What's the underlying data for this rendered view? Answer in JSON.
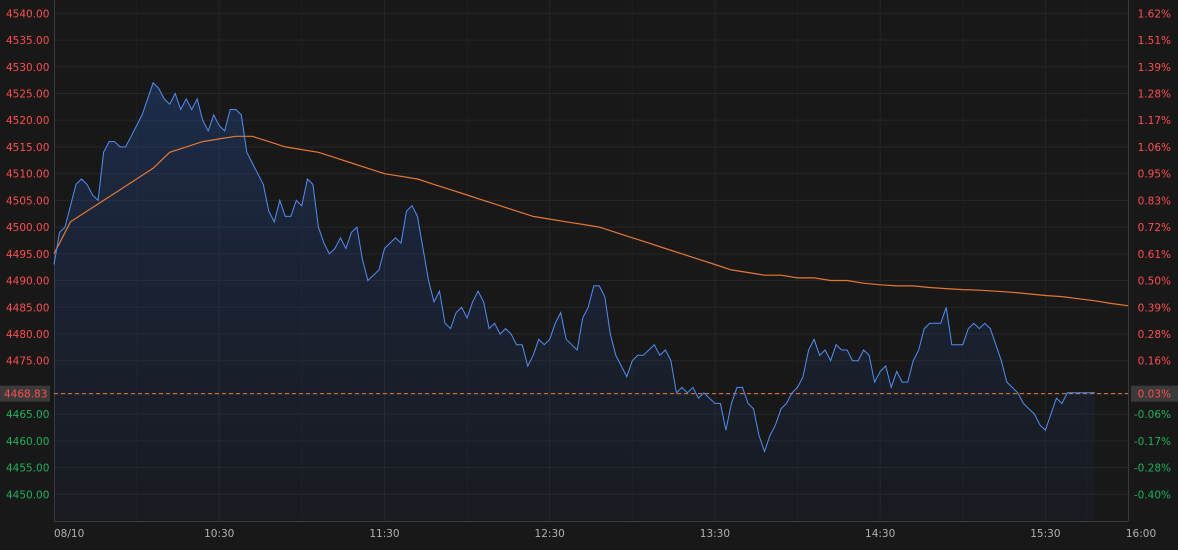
{
  "chart_data": {
    "type": "line",
    "title": "",
    "xlabel": "",
    "ylabel": "",
    "grid": true,
    "ylim": [
      4445.0,
      4542.5
    ],
    "reference_price": 4468.83,
    "reference_label": "4468.83",
    "reference_pct_label": "0.03%",
    "y_ticks": [
      {
        "value": 4540,
        "label": "4540.00"
      },
      {
        "value": 4535,
        "label": "4535.00"
      },
      {
        "value": 4530,
        "label": "4530.00"
      },
      {
        "value": 4525,
        "label": "4525.00"
      },
      {
        "value": 4520,
        "label": "4520.00"
      },
      {
        "value": 4515,
        "label": "4515.00"
      },
      {
        "value": 4510,
        "label": "4510.00"
      },
      {
        "value": 4505,
        "label": "4505.00"
      },
      {
        "value": 4500,
        "label": "4500.00"
      },
      {
        "value": 4495,
        "label": "4495.00"
      },
      {
        "value": 4490,
        "label": "4490.00"
      },
      {
        "value": 4485,
        "label": "4485.00"
      },
      {
        "value": 4480,
        "label": "4480.00"
      },
      {
        "value": 4475,
        "label": "4475.00"
      },
      {
        "value": 4465,
        "label": "4465.00"
      },
      {
        "value": 4460,
        "label": "4460.00"
      },
      {
        "value": 4455,
        "label": "4455.00"
      },
      {
        "value": 4450,
        "label": "4450.00"
      }
    ],
    "pct_ticks": [
      {
        "value": 4540,
        "label": "1.62%"
      },
      {
        "value": 4535,
        "label": "1.51%"
      },
      {
        "value": 4530,
        "label": "1.39%"
      },
      {
        "value": 4525,
        "label": "1.28%"
      },
      {
        "value": 4520,
        "label": "1.17%"
      },
      {
        "value": 4515,
        "label": "1.06%"
      },
      {
        "value": 4510,
        "label": "0.95%"
      },
      {
        "value": 4505,
        "label": "0.83%"
      },
      {
        "value": 4500,
        "label": "0.72%"
      },
      {
        "value": 4495,
        "label": "0.61%"
      },
      {
        "value": 4490,
        "label": "0.50%"
      },
      {
        "value": 4485,
        "label": "0.39%"
      },
      {
        "value": 4480,
        "label": "0.28%"
      },
      {
        "value": 4475,
        "label": "0.16%"
      },
      {
        "value": 4465,
        "label": "-0.06%"
      },
      {
        "value": 4460,
        "label": "-0.17%"
      },
      {
        "value": 4455,
        "label": "-0.28%"
      },
      {
        "value": 4450,
        "label": "-0.40%"
      }
    ],
    "x_range": [
      "09:30",
      "16:00"
    ],
    "x_ticks": [
      {
        "t": "09:30",
        "label": "08/10"
      },
      {
        "t": "10:30",
        "label": "10:30"
      },
      {
        "t": "11:30",
        "label": "11:30"
      },
      {
        "t": "12:30",
        "label": "12:30"
      },
      {
        "t": "13:30",
        "label": "13:30"
      },
      {
        "t": "14:30",
        "label": "14:30"
      },
      {
        "t": "15:30",
        "label": "15:30"
      },
      {
        "t": "16:00",
        "label": "16:00"
      }
    ],
    "series": [
      {
        "role": "price",
        "color": "#4f8ef7",
        "points": [
          [
            "09:30",
            4493
          ],
          [
            "09:32",
            4499
          ],
          [
            "09:34",
            4500
          ],
          [
            "09:36",
            4504
          ],
          [
            "09:38",
            4508
          ],
          [
            "09:40",
            4509
          ],
          [
            "09:42",
            4508
          ],
          [
            "09:44",
            4506
          ],
          [
            "09:46",
            4505
          ],
          [
            "09:48",
            4514
          ],
          [
            "09:50",
            4516
          ],
          [
            "09:52",
            4516
          ],
          [
            "09:54",
            4515
          ],
          [
            "09:56",
            4515
          ],
          [
            "09:58",
            4517
          ],
          [
            "10:00",
            4519
          ],
          [
            "10:02",
            4521
          ],
          [
            "10:04",
            4524
          ],
          [
            "10:06",
            4527
          ],
          [
            "10:08",
            4526
          ],
          [
            "10:10",
            4524
          ],
          [
            "10:12",
            4523
          ],
          [
            "10:14",
            4525
          ],
          [
            "10:16",
            4522
          ],
          [
            "10:18",
            4524
          ],
          [
            "10:20",
            4522
          ],
          [
            "10:22",
            4524
          ],
          [
            "10:24",
            4520
          ],
          [
            "10:26",
            4518
          ],
          [
            "10:28",
            4521
          ],
          [
            "10:30",
            4519
          ],
          [
            "10:32",
            4518
          ],
          [
            "10:34",
            4522
          ],
          [
            "10:36",
            4522
          ],
          [
            "10:38",
            4521
          ],
          [
            "10:40",
            4514
          ],
          [
            "10:42",
            4512
          ],
          [
            "10:44",
            4510
          ],
          [
            "10:46",
            4508
          ],
          [
            "10:48",
            4503
          ],
          [
            "10:50",
            4501
          ],
          [
            "10:52",
            4505
          ],
          [
            "10:54",
            4502
          ],
          [
            "10:56",
            4502
          ],
          [
            "10:58",
            4505
          ],
          [
            "11:00",
            4504
          ],
          [
            "11:02",
            4509
          ],
          [
            "11:04",
            4508
          ],
          [
            "11:06",
            4500
          ],
          [
            "11:08",
            4497
          ],
          [
            "11:10",
            4495
          ],
          [
            "11:12",
            4496
          ],
          [
            "11:14",
            4498
          ],
          [
            "11:16",
            4496
          ],
          [
            "11:18",
            4499
          ],
          [
            "11:20",
            4500
          ],
          [
            "11:22",
            4494
          ],
          [
            "11:24",
            4490
          ],
          [
            "11:26",
            4491
          ],
          [
            "11:28",
            4492
          ],
          [
            "11:30",
            4496
          ],
          [
            "11:32",
            4497
          ],
          [
            "11:34",
            4498
          ],
          [
            "11:36",
            4497
          ],
          [
            "11:38",
            4503
          ],
          [
            "11:40",
            4504
          ],
          [
            "11:42",
            4502
          ],
          [
            "11:44",
            4496
          ],
          [
            "11:46",
            4490
          ],
          [
            "11:48",
            4486
          ],
          [
            "11:50",
            4488
          ],
          [
            "11:52",
            4482
          ],
          [
            "11:54",
            4481
          ],
          [
            "11:56",
            4484
          ],
          [
            "11:58",
            4485
          ],
          [
            "12:00",
            4483
          ],
          [
            "12:02",
            4486
          ],
          [
            "12:04",
            4488
          ],
          [
            "12:06",
            4486
          ],
          [
            "12:08",
            4481
          ],
          [
            "12:10",
            4482
          ],
          [
            "12:12",
            4480
          ],
          [
            "12:14",
            4481
          ],
          [
            "12:16",
            4480
          ],
          [
            "12:18",
            4478
          ],
          [
            "12:20",
            4478
          ],
          [
            "12:22",
            4474
          ],
          [
            "12:24",
            4476
          ],
          [
            "12:26",
            4479
          ],
          [
            "12:28",
            4478
          ],
          [
            "12:30",
            4479
          ],
          [
            "12:32",
            4482
          ],
          [
            "12:34",
            4484
          ],
          [
            "12:36",
            4479
          ],
          [
            "12:38",
            4478
          ],
          [
            "12:40",
            4477
          ],
          [
            "12:42",
            4483
          ],
          [
            "12:44",
            4485
          ],
          [
            "12:46",
            4489
          ],
          [
            "12:48",
            4489
          ],
          [
            "12:50",
            4487
          ],
          [
            "12:52",
            4480
          ],
          [
            "12:54",
            4476
          ],
          [
            "12:56",
            4474
          ],
          [
            "12:58",
            4472
          ],
          [
            "13:00",
            4475
          ],
          [
            "13:02",
            4476
          ],
          [
            "13:04",
            4476
          ],
          [
            "13:06",
            4477
          ],
          [
            "13:08",
            4478
          ],
          [
            "13:10",
            4476
          ],
          [
            "13:12",
            4477
          ],
          [
            "13:14",
            4475
          ],
          [
            "13:16",
            4469
          ],
          [
            "13:18",
            4470
          ],
          [
            "13:20",
            4469
          ],
          [
            "13:22",
            4470
          ],
          [
            "13:24",
            4468
          ],
          [
            "13:26",
            4469
          ],
          [
            "13:28",
            4468
          ],
          [
            "13:30",
            4467
          ],
          [
            "13:32",
            4467
          ],
          [
            "13:34",
            4462
          ],
          [
            "13:36",
            4467
          ],
          [
            "13:38",
            4470
          ],
          [
            "13:40",
            4470
          ],
          [
            "13:42",
            4467
          ],
          [
            "13:44",
            4466
          ],
          [
            "13:46",
            4461
          ],
          [
            "13:48",
            4458
          ],
          [
            "13:50",
            4461
          ],
          [
            "13:52",
            4463
          ],
          [
            "13:54",
            4466
          ],
          [
            "13:56",
            4467
          ],
          [
            "13:58",
            4469
          ],
          [
            "14:00",
            4470
          ],
          [
            "14:02",
            4472
          ],
          [
            "14:04",
            4477
          ],
          [
            "14:06",
            4479
          ],
          [
            "14:08",
            4476
          ],
          [
            "14:10",
            4477
          ],
          [
            "14:12",
            4475
          ],
          [
            "14:14",
            4478
          ],
          [
            "14:16",
            4477
          ],
          [
            "14:18",
            4477
          ],
          [
            "14:20",
            4475
          ],
          [
            "14:22",
            4475
          ],
          [
            "14:24",
            4477
          ],
          [
            "14:26",
            4476
          ],
          [
            "14:28",
            4471
          ],
          [
            "14:30",
            4473
          ],
          [
            "14:32",
            4474
          ],
          [
            "14:34",
            4470
          ],
          [
            "14:36",
            4473
          ],
          [
            "14:38",
            4471
          ],
          [
            "14:40",
            4471
          ],
          [
            "14:42",
            4475
          ],
          [
            "14:44",
            4477
          ],
          [
            "14:46",
            4481
          ],
          [
            "14:48",
            4482
          ],
          [
            "14:50",
            4482
          ],
          [
            "14:52",
            4482
          ],
          [
            "14:54",
            4485
          ],
          [
            "14:56",
            4478
          ],
          [
            "14:58",
            4478
          ],
          [
            "15:00",
            4478
          ],
          [
            "15:02",
            4481
          ],
          [
            "15:04",
            4482
          ],
          [
            "15:06",
            4481
          ],
          [
            "15:08",
            4482
          ],
          [
            "15:10",
            4481
          ],
          [
            "15:12",
            4478
          ],
          [
            "15:14",
            4475
          ],
          [
            "15:16",
            4471
          ],
          [
            "15:18",
            4470
          ],
          [
            "15:20",
            4469
          ],
          [
            "15:22",
            4467
          ],
          [
            "15:24",
            4466
          ],
          [
            "15:26",
            4465
          ],
          [
            "15:28",
            4463
          ],
          [
            "15:30",
            4462
          ],
          [
            "15:32",
            4465
          ],
          [
            "15:34",
            4468
          ],
          [
            "15:36",
            4467
          ],
          [
            "15:38",
            4469
          ],
          [
            "15:40",
            4469
          ],
          [
            "15:42",
            4469
          ],
          [
            "15:44",
            4469
          ],
          [
            "15:46",
            4469
          ],
          [
            "15:48",
            4469
          ]
        ]
      },
      {
        "role": "average",
        "color": "#e8772e",
        "points": [
          [
            "09:30",
            4495
          ],
          [
            "09:36",
            4501
          ],
          [
            "09:42",
            4503
          ],
          [
            "09:48",
            4505
          ],
          [
            "09:54",
            4507
          ],
          [
            "10:00",
            4509
          ],
          [
            "10:06",
            4511
          ],
          [
            "10:12",
            4514
          ],
          [
            "10:18",
            4515
          ],
          [
            "10:24",
            4516
          ],
          [
            "10:30",
            4516.5
          ],
          [
            "10:36",
            4517
          ],
          [
            "10:42",
            4517
          ],
          [
            "10:48",
            4516
          ],
          [
            "10:54",
            4515
          ],
          [
            "11:00",
            4514.5
          ],
          [
            "11:06",
            4514
          ],
          [
            "11:12",
            4513
          ],
          [
            "11:18",
            4512
          ],
          [
            "11:24",
            4511
          ],
          [
            "11:30",
            4510
          ],
          [
            "11:36",
            4509.5
          ],
          [
            "11:42",
            4509
          ],
          [
            "11:48",
            4508
          ],
          [
            "11:54",
            4507
          ],
          [
            "12:00",
            4506
          ],
          [
            "12:06",
            4505
          ],
          [
            "12:12",
            4504
          ],
          [
            "12:18",
            4503
          ],
          [
            "12:24",
            4502
          ],
          [
            "12:30",
            4501.5
          ],
          [
            "12:36",
            4501
          ],
          [
            "12:42",
            4500.5
          ],
          [
            "12:48",
            4500
          ],
          [
            "12:54",
            4499
          ],
          [
            "13:00",
            4498
          ],
          [
            "13:06",
            4497
          ],
          [
            "13:12",
            4496
          ],
          [
            "13:18",
            4495
          ],
          [
            "13:24",
            4494
          ],
          [
            "13:30",
            4493
          ],
          [
            "13:36",
            4492
          ],
          [
            "13:42",
            4491.5
          ],
          [
            "13:48",
            4491
          ],
          [
            "13:54",
            4491
          ],
          [
            "14:00",
            4490.5
          ],
          [
            "14:06",
            4490.5
          ],
          [
            "14:12",
            4490
          ],
          [
            "14:18",
            4490
          ],
          [
            "14:24",
            4489.5
          ],
          [
            "14:30",
            4489.2
          ],
          [
            "14:36",
            4489
          ],
          [
            "14:42",
            4489
          ],
          [
            "14:48",
            4488.7
          ],
          [
            "14:54",
            4488.5
          ],
          [
            "15:00",
            4488.3
          ],
          [
            "15:06",
            4488.2
          ],
          [
            "15:12",
            4488
          ],
          [
            "15:18",
            4487.8
          ],
          [
            "15:24",
            4487.5
          ],
          [
            "15:30",
            4487.2
          ],
          [
            "15:36",
            4487
          ],
          [
            "15:42",
            4486.6
          ],
          [
            "15:48",
            4486.2
          ],
          [
            "15:54",
            4485.7
          ],
          [
            "16:00",
            4485.3
          ]
        ]
      }
    ],
    "colors": {
      "background": "#181818",
      "grid": "#262626",
      "up_label": "#ff4d4f",
      "down_label": "#19b35b",
      "time_label": "#b0b0b0",
      "reference_line": "#e8772e",
      "reference_badge": "#3a3a3a"
    }
  }
}
